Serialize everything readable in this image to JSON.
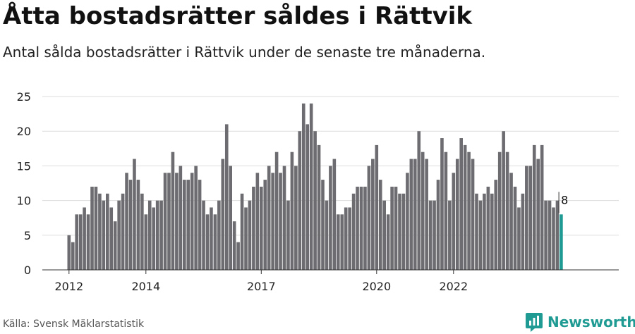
{
  "title": "Åtta bostadsrätter såldes i Rättvik",
  "subtitle": "Antal sålda bostadsrätter i Rättvik under de senaste tre månaderna.",
  "source": "Källa: Svensk Mäklarstatistik",
  "brand": {
    "name": "Newsworthy",
    "icon": "newsworthy-logo-icon"
  },
  "colors": {
    "bar": "#6d6c70",
    "highlight": "#1f9b94",
    "grid": "#dddddd",
    "axis": "#333333"
  },
  "chart_data": {
    "type": "bar",
    "title": "Åtta bostadsrätter såldes i Rättvik",
    "xlabel": "",
    "ylabel": "",
    "ylim": [
      0,
      25
    ],
    "yticks": [
      0,
      5,
      10,
      15,
      20,
      25
    ],
    "grid": true,
    "x_tick_labels": [
      {
        "label": "2012",
        "index": 0
      },
      {
        "label": "2014",
        "index": 20
      },
      {
        "label": "2017",
        "index": 50
      },
      {
        "label": "2020",
        "index": 80
      },
      {
        "label": "2022",
        "index": 100
      }
    ],
    "values": [
      5,
      4,
      8,
      8,
      9,
      8,
      12,
      12,
      11,
      10,
      11,
      9,
      7,
      10,
      11,
      14,
      13,
      16,
      13,
      11,
      8,
      10,
      9,
      10,
      10,
      14,
      14,
      17,
      14,
      15,
      13,
      13,
      14,
      15,
      13,
      10,
      8,
      9,
      8,
      10,
      16,
      21,
      15,
      7,
      4,
      11,
      9,
      10,
      12,
      14,
      12,
      13,
      15,
      14,
      17,
      14,
      15,
      10,
      17,
      15,
      20,
      24,
      21,
      24,
      20,
      18,
      13,
      10,
      15,
      16,
      8,
      8,
      9,
      9,
      11,
      12,
      12,
      12,
      15,
      16,
      18,
      13,
      10,
      8,
      12,
      12,
      11,
      11,
      14,
      16,
      16,
      20,
      17,
      16,
      10,
      10,
      13,
      19,
      17,
      10,
      14,
      16,
      19,
      18,
      17,
      16,
      11,
      10,
      11,
      12,
      11,
      13,
      17,
      20,
      17,
      14,
      12,
      9,
      11,
      15,
      15,
      18,
      16,
      18,
      10,
      10,
      9,
      10,
      8
    ],
    "highlight_index": 128,
    "highlight_label": "8"
  }
}
